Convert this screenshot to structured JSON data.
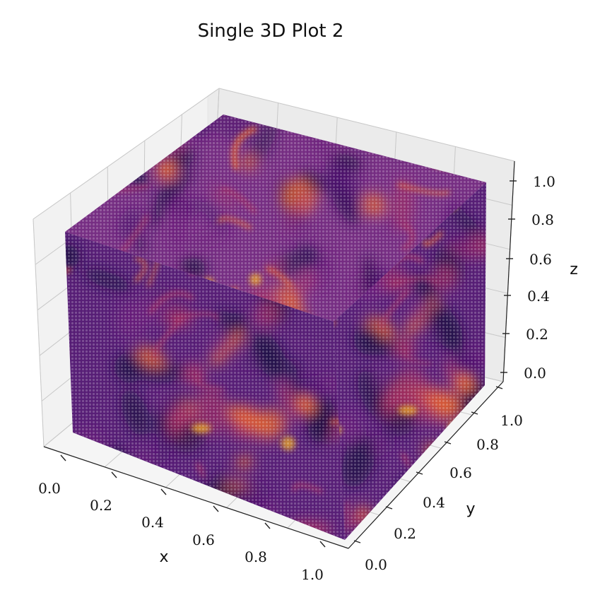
{
  "chart_data": {
    "type": "3d-volume-scatter",
    "title": "Single 3D Plot 2",
    "xlabel": "x",
    "ylabel": "y",
    "zlabel": "z",
    "xlim": [
      0.0,
      1.0
    ],
    "ylim": [
      0.0,
      1.0
    ],
    "zlim": [
      0.0,
      1.0
    ],
    "x_ticks": [
      "0.0",
      "0.2",
      "0.4",
      "0.6",
      "0.8",
      "1.0"
    ],
    "y_ticks": [
      "0.0",
      "0.2",
      "0.4",
      "0.6",
      "0.8",
      "1.0"
    ],
    "z_ticks": [
      "0.0",
      "0.2",
      "0.4",
      "0.6",
      "0.8",
      "1.0"
    ],
    "colormap": "inferno",
    "colors": {
      "dark": "#1b0c41",
      "mid": "#4a0c6b",
      "purple": "#6b1d7a",
      "magenta": "#a52c60",
      "orange": "#ed6925",
      "yellow": "#fbb61a"
    },
    "grid": true
  }
}
